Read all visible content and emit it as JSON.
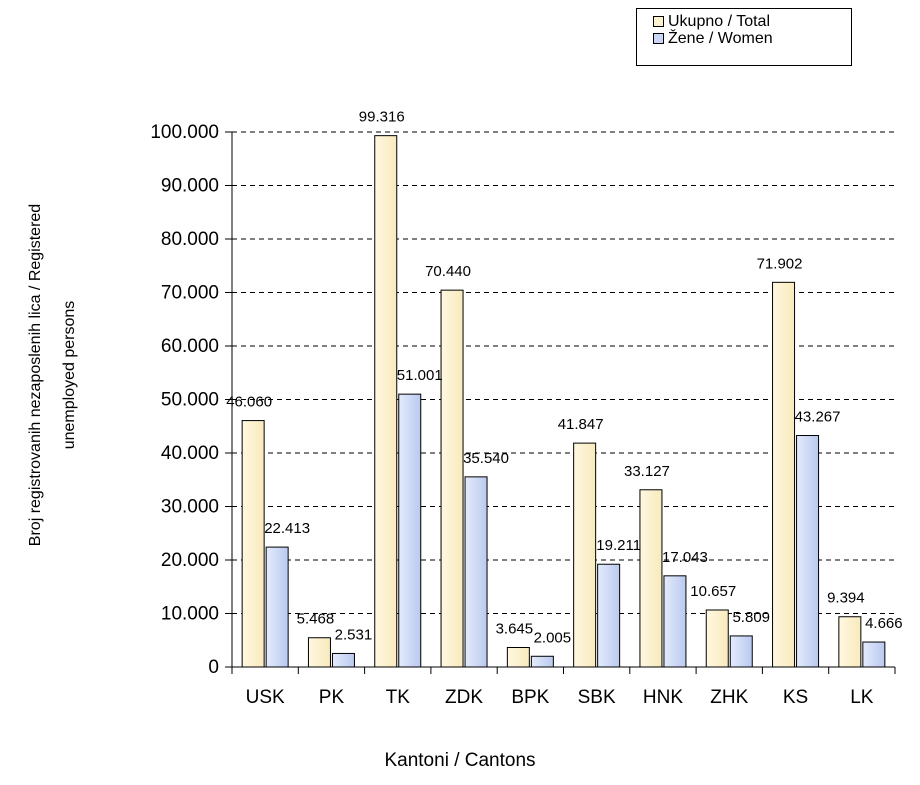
{
  "chart_data": {
    "type": "bar",
    "categories": [
      "USK",
      "PK",
      "TK",
      "ZDK",
      "BPK",
      "SBK",
      "HNK",
      "ZHK",
      "KS",
      "LK"
    ],
    "series": [
      {
        "name": "Ukupno / Total",
        "values": [
          46060,
          5468,
          99316,
          70440,
          3645,
          41847,
          33127,
          10657,
          71902,
          9394
        ],
        "labels": [
          "46.060",
          "5.468",
          "99.316",
          "70.440",
          "3.645",
          "41.847",
          "33.127",
          "10.657",
          "71.902",
          "9.394"
        ],
        "color": "#fdf3cf"
      },
      {
        "name": "Žene / Women",
        "values": [
          22413,
          2531,
          51001,
          35540,
          2005,
          19211,
          17043,
          5809,
          43267,
          4666
        ],
        "labels": [
          "22.413",
          "2.531",
          "51.001",
          "35.540",
          "2.005",
          "19.211",
          "17.043",
          "5.809",
          "43.267",
          "4.666"
        ],
        "color": "#c9d6f5"
      }
    ],
    "xlabel": "Kantoni / Cantons",
    "ylabel": "Broj registrovanih nezaposlenih lica / Registered unemployed persons",
    "ylabel_lines": [
      "Broj registrovanih nezaposlenih lica / Registered",
      "unemployed persons"
    ],
    "yticks": [
      0,
      10000,
      20000,
      30000,
      40000,
      50000,
      60000,
      70000,
      80000,
      90000,
      100000
    ],
    "ytick_labels": [
      "0",
      "10.000",
      "20.000",
      "30.000",
      "40.000",
      "50.000",
      "60.000",
      "70.000",
      "80.000",
      "90.000",
      "100.000"
    ],
    "ylim": [
      0,
      100000
    ],
    "grid": "horizontal dashed",
    "legend_position": "top-right"
  }
}
